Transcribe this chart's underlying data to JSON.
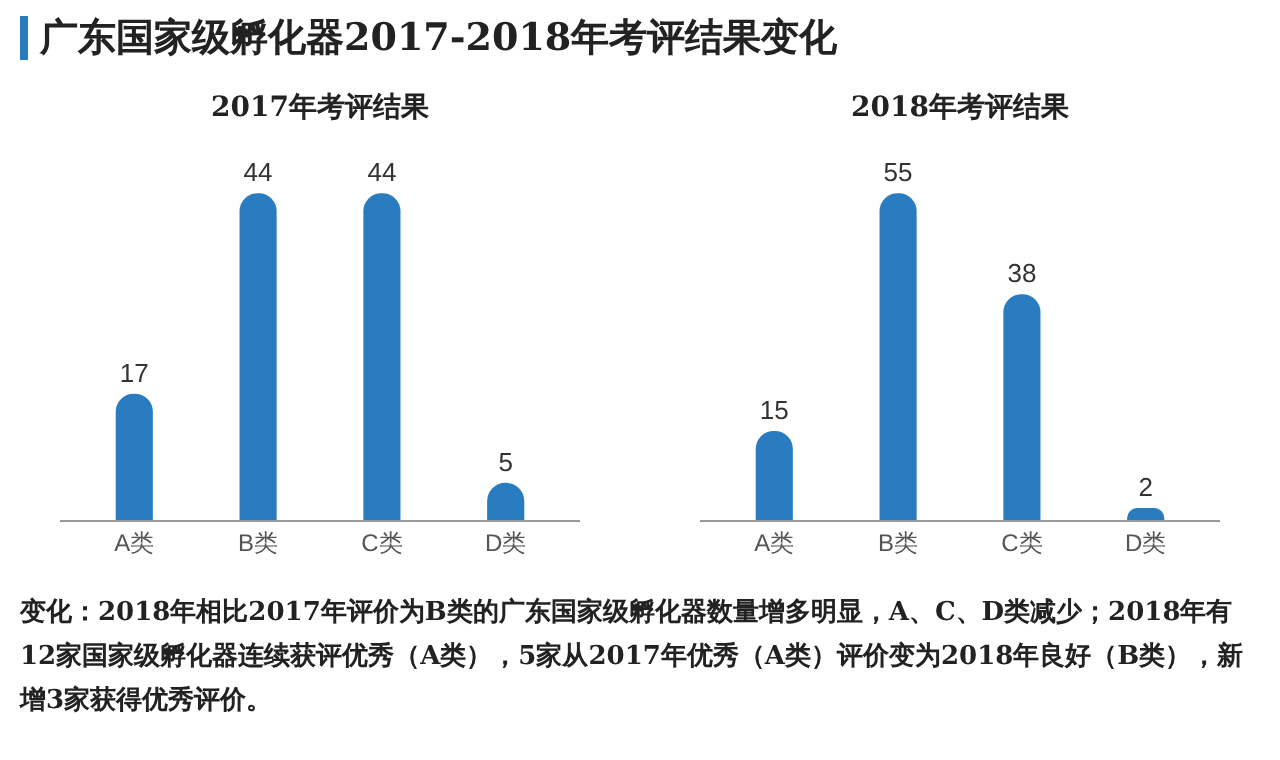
{
  "chart_data": [
    {
      "type": "other",
      "title": "广东国家级孵化器2017-2018年考评结果变化",
      "annotations": [
        "变化：2018年相比2017年评价为B类的广东国家级孵化器数量增多明显，A、C、D类减少；2018年有12家国家级孵化器连续获评优秀（A类），5家从2017年优秀（A类）评价变为2018年良好（B类），新增3家获得优秀评价。"
      ]
    },
    {
      "type": "bar",
      "title": "2017年考评结果",
      "categories": [
        "A类",
        "B类",
        "C类",
        "D类"
      ],
      "values": [
        17,
        44,
        44,
        5
      ],
      "color": "#2a7cc0",
      "data_labels": true,
      "legend": false
    },
    {
      "type": "bar",
      "title": "2018年考评结果",
      "categories": [
        "A类",
        "B类",
        "C类",
        "D类"
      ],
      "values": [
        15,
        55,
        38,
        2
      ],
      "color": "#2a7cc0",
      "data_labels": true,
      "legend": false
    }
  ]
}
